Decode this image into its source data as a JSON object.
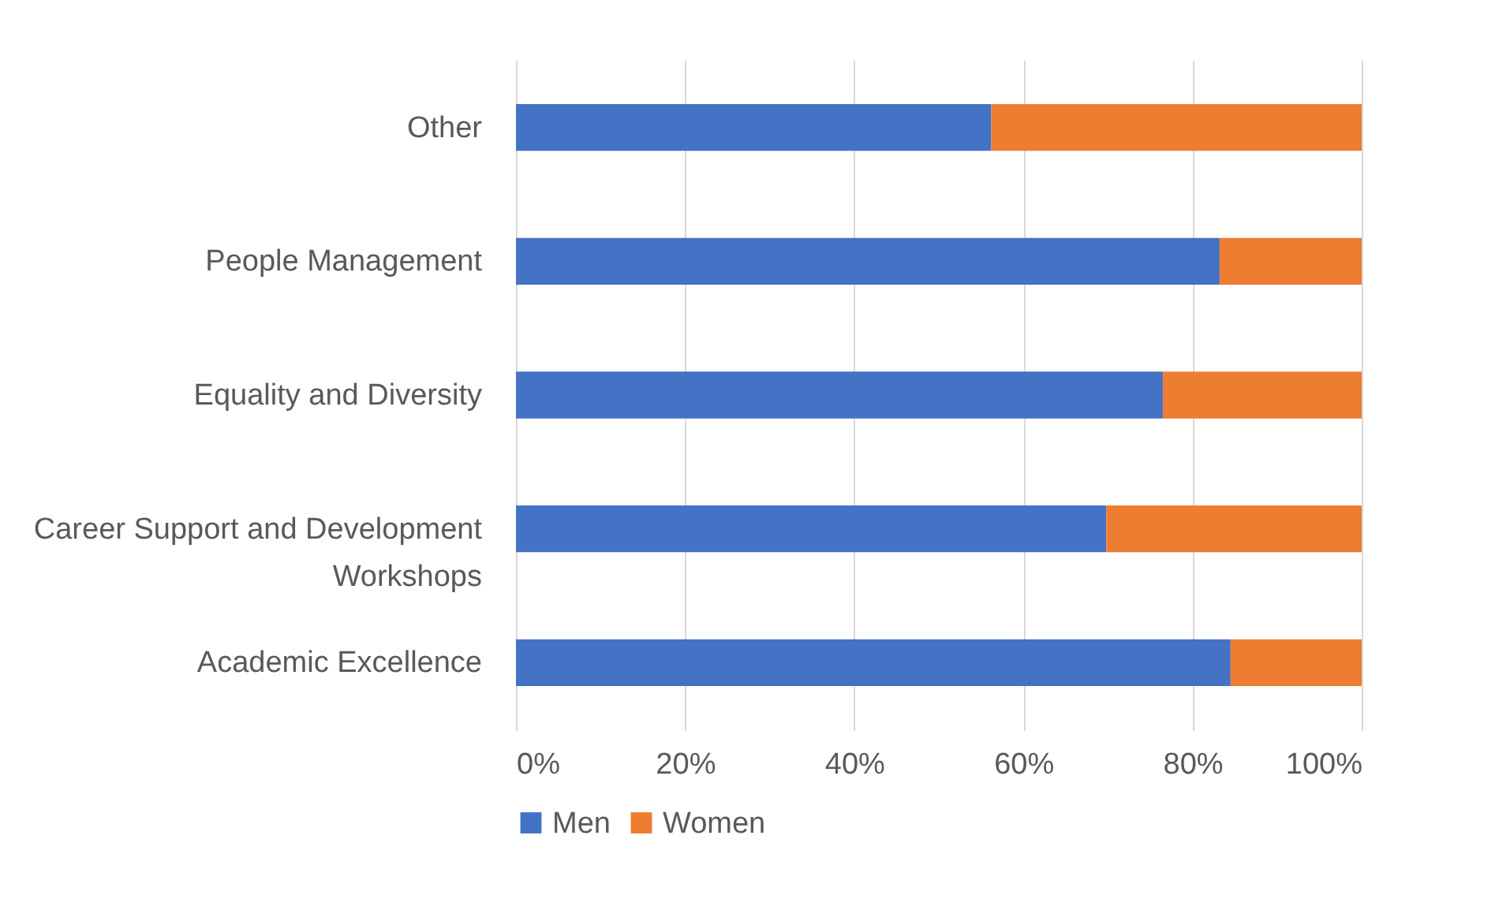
{
  "chart_data": {
    "type": "bar",
    "orientation": "horizontal",
    "stacked": true,
    "categories": [
      "Other",
      "People Management",
      "Equality and Diversity",
      "Career Support and Development Workshops",
      "Academic Excellence"
    ],
    "series": [
      {
        "name": "Men",
        "color": "#4472c4",
        "values": [
          56.2,
          83.2,
          76.5,
          69.8,
          84.5
        ]
      },
      {
        "name": "Women",
        "color": "#ed7d31",
        "values": [
          43.8,
          16.8,
          23.5,
          30.2,
          15.5
        ]
      }
    ],
    "xlim": [
      0,
      100
    ],
    "xticks": [
      {
        "value": 0,
        "label": "0%"
      },
      {
        "value": 20,
        "label": "20%"
      },
      {
        "value": 40,
        "label": "40%"
      },
      {
        "value": 60,
        "label": "60%"
      },
      {
        "value": 80,
        "label": "80%"
      },
      {
        "value": 100,
        "label": "100%"
      }
    ],
    "grid": "x",
    "legend": "bottom"
  }
}
